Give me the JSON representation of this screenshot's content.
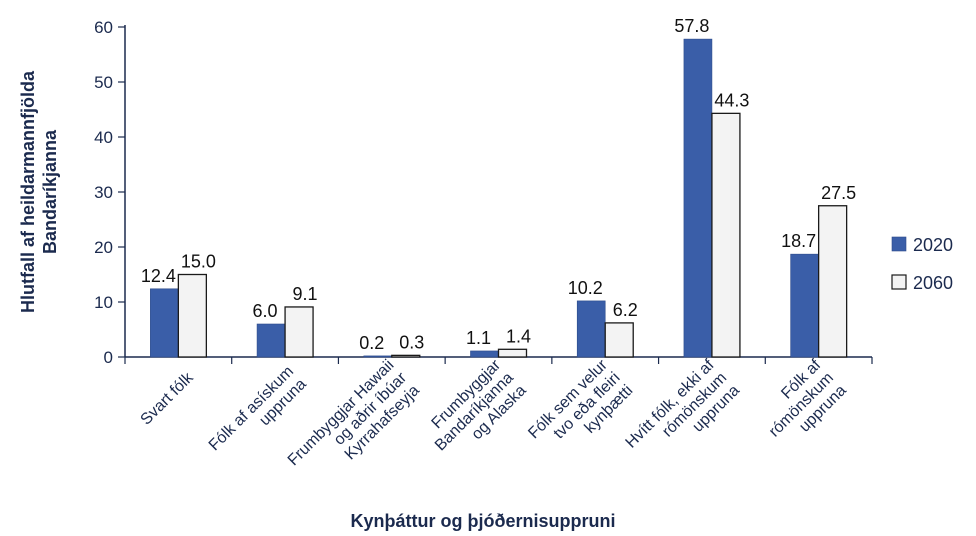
{
  "chart_data": {
    "type": "bar",
    "xlabel": "Kynþáttur og þjóðernisuppruni",
    "ylabel_lines": [
      "Hlutfall af heildarmannfjölda",
      "Bandaríkjanna"
    ],
    "ylim": [
      0,
      60
    ],
    "yticks": [
      0,
      10,
      20,
      30,
      40,
      50,
      60
    ],
    "categories": [
      [
        "Svart fólk"
      ],
      [
        "Fólk af asískum",
        "uppruna"
      ],
      [
        "Frumbyggjar Hawaii",
        "og aðrir íbúar",
        "Kyrrahafseyja"
      ],
      [
        "Frumbyggjar",
        "Bandaríkjanna",
        "og Alaska"
      ],
      [
        "Fólk sem velur",
        "tvo eða fleiri",
        "kynþætti"
      ],
      [
        "Hvítt fólk, ekki af",
        "rómönskum",
        "uppruna"
      ],
      [
        "Fólk af",
        "rómönskum",
        "uppruna"
      ]
    ],
    "series": [
      {
        "name": "2020",
        "color": "#3a5ea8",
        "values": [
          12.4,
          6.0,
          0.2,
          1.1,
          10.2,
          57.8,
          18.7
        ],
        "labels": [
          "12.4",
          "6.0",
          "0.2",
          "1.1",
          "10.2",
          "57.8",
          "18.7"
        ]
      },
      {
        "name": "2060",
        "color": "#f3f3f3",
        "values": [
          15.0,
          9.1,
          0.3,
          1.4,
          6.2,
          44.3,
          27.5
        ],
        "labels": [
          "15.0",
          "9.1",
          "0.3",
          "1.4",
          "6.2",
          "44.3",
          "27.5"
        ]
      }
    ],
    "legend_position": "right",
    "grid": false,
    "axis_color": "#1b2a4e"
  }
}
